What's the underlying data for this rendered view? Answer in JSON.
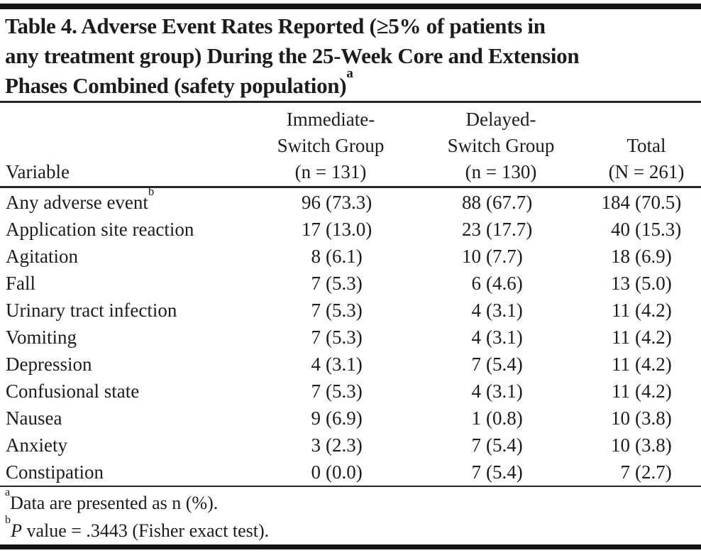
{
  "title": {
    "line1": "Table 4. Adverse Event Rates Reported (≥5% of patients in",
    "line2": "any treatment group) During the 25-Week Core and Extension",
    "line3": "Phases Combined (safety population)",
    "sup": "a"
  },
  "header": {
    "variable": "Variable",
    "immediate": [
      "Immediate-",
      "Switch Group",
      "(n = 131)"
    ],
    "delayed": [
      "Delayed-",
      "Switch Group",
      "(n = 130)"
    ],
    "total": [
      "Total",
      "(N = 261)"
    ]
  },
  "rows": [
    {
      "label": "Any adverse event",
      "sup": "b",
      "cols": [
        {
          "n": "96",
          "pct": "(73.3)"
        },
        {
          "n": "88",
          "pct": "(67.7)"
        },
        {
          "n": "184",
          "pct": "(70.5)"
        }
      ]
    },
    {
      "label": "Application site reaction",
      "sup": "",
      "cols": [
        {
          "n": "17",
          "pct": "(13.0)"
        },
        {
          "n": "23",
          "pct": "(17.7)"
        },
        {
          "n": "40",
          "pct": "(15.3)"
        }
      ]
    },
    {
      "label": "Agitation",
      "sup": "",
      "cols": [
        {
          "n": "8",
          "pct": "(6.1)"
        },
        {
          "n": "10",
          "pct": "(7.7)"
        },
        {
          "n": "18",
          "pct": "(6.9)"
        }
      ]
    },
    {
      "label": "Fall",
      "sup": "",
      "cols": [
        {
          "n": "7",
          "pct": "(5.3)"
        },
        {
          "n": "6",
          "pct": "(4.6)"
        },
        {
          "n": "13",
          "pct": "(5.0)"
        }
      ]
    },
    {
      "label": "Urinary tract infection",
      "sup": "",
      "cols": [
        {
          "n": "7",
          "pct": "(5.3)"
        },
        {
          "n": "4",
          "pct": "(3.1)"
        },
        {
          "n": "11",
          "pct": "(4.2)"
        }
      ]
    },
    {
      "label": "Vomiting",
      "sup": "",
      "cols": [
        {
          "n": "7",
          "pct": "(5.3)"
        },
        {
          "n": "4",
          "pct": "(3.1)"
        },
        {
          "n": "11",
          "pct": "(4.2)"
        }
      ]
    },
    {
      "label": "Depression",
      "sup": "",
      "cols": [
        {
          "n": "4",
          "pct": "(3.1)"
        },
        {
          "n": "7",
          "pct": "(5.4)"
        },
        {
          "n": "11",
          "pct": "(4.2)"
        }
      ]
    },
    {
      "label": "Confusional state",
      "sup": "",
      "cols": [
        {
          "n": "7",
          "pct": "(5.3)"
        },
        {
          "n": "4",
          "pct": "(3.1)"
        },
        {
          "n": "11",
          "pct": "(4.2)"
        }
      ]
    },
    {
      "label": "Nausea",
      "sup": "",
      "cols": [
        {
          "n": "9",
          "pct": "(6.9)"
        },
        {
          "n": "1",
          "pct": "(0.8)"
        },
        {
          "n": "10",
          "pct": "(3.8)"
        }
      ]
    },
    {
      "label": "Anxiety",
      "sup": "",
      "cols": [
        {
          "n": "3",
          "pct": "(2.3)"
        },
        {
          "n": "7",
          "pct": "(5.4)"
        },
        {
          "n": "10",
          "pct": "(3.8)"
        }
      ]
    },
    {
      "label": "Constipation",
      "sup": "",
      "cols": [
        {
          "n": "0",
          "pct": "(0.0)"
        },
        {
          "n": "7",
          "pct": "(5.4)"
        },
        {
          "n": "7",
          "pct": "(2.7)"
        }
      ]
    }
  ],
  "footnotes": {
    "a": {
      "sup": "a",
      "text": "Data are presented as n (%)."
    },
    "b": {
      "sup": "b",
      "italic": "P",
      "text": " value = .3443 (Fisher exact test)."
    }
  },
  "colors": {
    "text": "#1c1c1c",
    "heavy_rule": "#141414",
    "thin_rule": "#262626",
    "background": "#ffffff"
  }
}
